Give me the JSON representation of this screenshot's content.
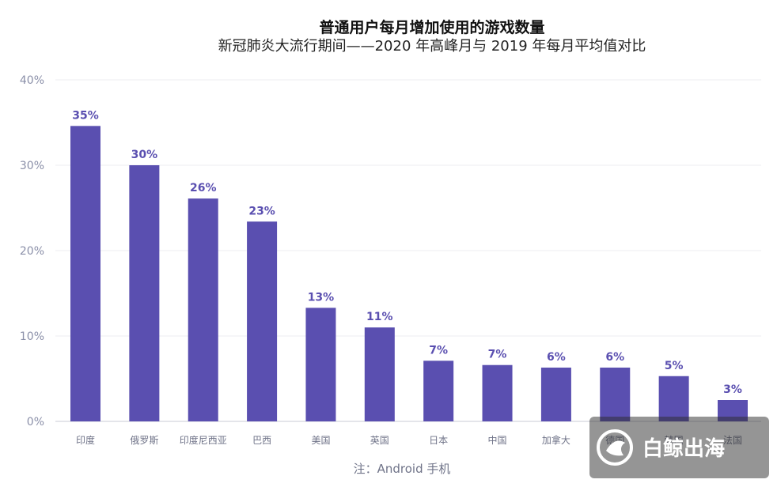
{
  "chart_data": {
    "type": "bar",
    "title": "普通用户每月增加使用的游戏数量",
    "subtitle": "新冠肺炎大流行期间——2020 年高峰月与 2019 年每月平均值对比",
    "categories": [
      "印度",
      "俄罗斯",
      "印度尼西亚",
      "巴西",
      "美国",
      "英国",
      "日本",
      "中国",
      "加拿大",
      "德国",
      "韩国",
      "法国"
    ],
    "values": [
      35,
      30,
      26,
      23,
      13,
      11,
      7,
      7,
      6,
      6,
      5,
      3
    ],
    "value_labels": [
      "35%",
      "30%",
      "26%",
      "23%",
      "13%",
      "11%",
      "7%",
      "7%",
      "6%",
      "6%",
      "5%",
      "3%"
    ],
    "bar_heights_pct": [
      34.6,
      30.0,
      26.1,
      23.4,
      13.3,
      11.0,
      7.1,
      6.6,
      6.3,
      6.3,
      5.3,
      2.5
    ],
    "y_ticks": [
      "0%",
      "10%",
      "20%",
      "30%",
      "40%"
    ],
    "y_tick_values": [
      0,
      10,
      20,
      30,
      40
    ],
    "ylim": [
      0,
      40
    ],
    "xlabel": "",
    "ylabel": "",
    "grid": true,
    "bar_color": "#5a4fb0",
    "note": "注：Android 手机"
  },
  "watermark": {
    "text": "白鲸出海"
  }
}
